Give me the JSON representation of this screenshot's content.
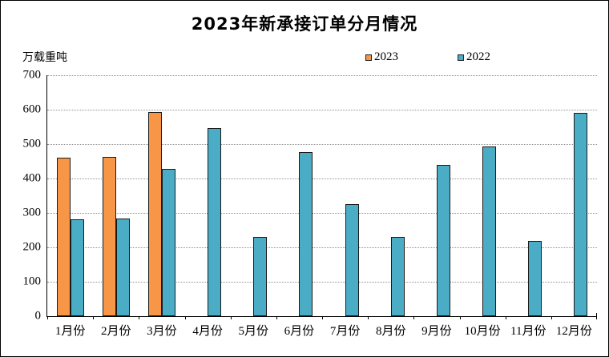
{
  "chart_data": {
    "type": "bar",
    "title": "2023年新承接订单分月情况",
    "ylabel": "万载重吨",
    "categories": [
      "1月份",
      "2月份",
      "3月份",
      "4月份",
      "5月份",
      "6月份",
      "7月份",
      "8月份",
      "9月份",
      "10月份",
      "11月份",
      "12月份"
    ],
    "series": [
      {
        "name": "2023",
        "color": "#F79646",
        "values": [
          460,
          462,
          593,
          null,
          null,
          null,
          null,
          null,
          null,
          null,
          null,
          null
        ]
      },
      {
        "name": "2022",
        "color": "#4BACC6",
        "values": [
          281,
          283,
          428,
          546,
          230,
          476,
          325,
          231,
          439,
          492,
          218,
          590
        ]
      }
    ],
    "ylim": [
      0,
      700
    ],
    "ytick_step": 100,
    "grid": "horizontal-dotted",
    "legend_position": "top-right",
    "bar_border_color": "#1a1a1a",
    "axis_color": "#000000",
    "grid_color": "#909090"
  }
}
